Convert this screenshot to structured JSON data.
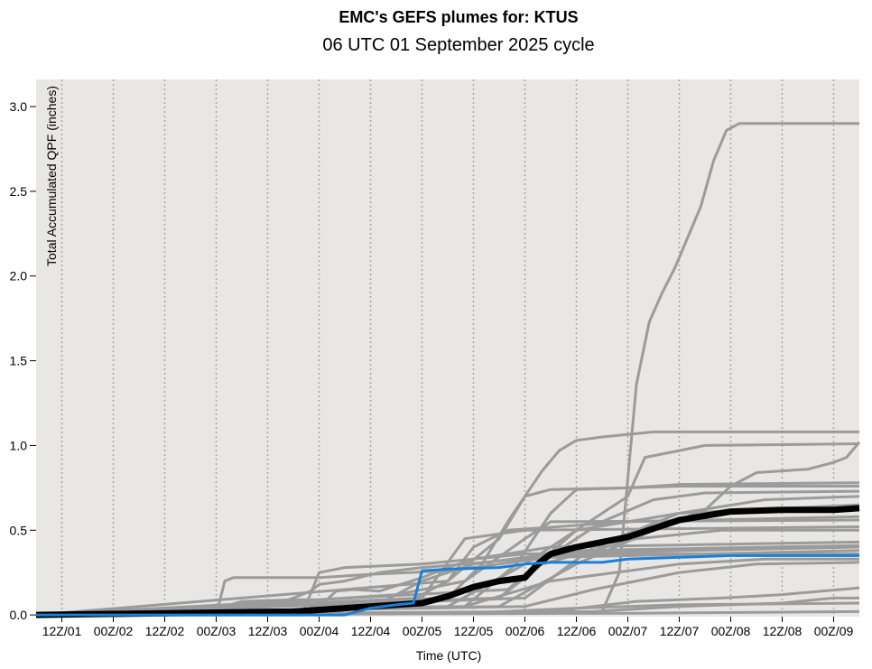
{
  "chart_data": {
    "type": "line",
    "title": "EMC's GEFS plumes for: KTUS",
    "subtitle": "06 UTC 01 September 2025 cycle",
    "xlabel": "Time (UTC)",
    "ylabel": "Total Accumulated QPF (inches)",
    "x_unit": "forecast hours since 06Z/01",
    "xlim": [
      0,
      192
    ],
    "ylim": [
      -0.01,
      3.16
    ],
    "grid": "vertical dotted at x ticks",
    "x_ticks": [
      {
        "hour": 6,
        "label": "12Z/01"
      },
      {
        "hour": 18,
        "label": "00Z/02"
      },
      {
        "hour": 30,
        "label": "12Z/02"
      },
      {
        "hour": 42,
        "label": "00Z/03"
      },
      {
        "hour": 54,
        "label": "12Z/03"
      },
      {
        "hour": 66,
        "label": "00Z/04"
      },
      {
        "hour": 78,
        "label": "12Z/04"
      },
      {
        "hour": 90,
        "label": "00Z/05"
      },
      {
        "hour": 102,
        "label": "12Z/05"
      },
      {
        "hour": 114,
        "label": "00Z/06"
      },
      {
        "hour": 126,
        "label": "12Z/06"
      },
      {
        "hour": 138,
        "label": "00Z/07"
      },
      {
        "hour": 150,
        "label": "12Z/07"
      },
      {
        "hour": 162,
        "label": "00Z/08"
      },
      {
        "hour": 174,
        "label": "12Z/08"
      },
      {
        "hour": 186,
        "label": "00Z/09"
      }
    ],
    "y_ticks": [
      {
        "value": 0.0,
        "label": "0.0"
      },
      {
        "value": 0.5,
        "label": "0.5"
      },
      {
        "value": 1.0,
        "label": "1.0"
      },
      {
        "value": 1.5,
        "label": "1.5"
      },
      {
        "value": 2.0,
        "label": "2.0"
      },
      {
        "value": 2.5,
        "label": "2.5"
      },
      {
        "value": 3.0,
        "label": "3.0"
      }
    ],
    "colors": {
      "background": "#e8e7e6",
      "member": "#9b9b9b",
      "mean": "#000000",
      "control": "#1a7fd6"
    },
    "members": [
      [
        [
          0,
          0
        ],
        [
          132,
          0.02
        ],
        [
          136,
          0.25
        ],
        [
          140,
          1.36
        ],
        [
          143,
          1.73
        ],
        [
          146,
          1.9
        ],
        [
          149,
          2.05
        ],
        [
          155,
          2.41
        ],
        [
          158,
          2.68
        ],
        [
          161,
          2.86
        ],
        [
          164,
          2.9
        ],
        [
          192,
          2.9
        ]
      ],
      [
        [
          0,
          0
        ],
        [
          84,
          0.04
        ],
        [
          96,
          0.2
        ],
        [
          108,
          0.45
        ],
        [
          114,
          0.7
        ],
        [
          118,
          0.85
        ],
        [
          122,
          0.97
        ],
        [
          126,
          1.03
        ],
        [
          132,
          1.05
        ],
        [
          144,
          1.08
        ],
        [
          192,
          1.08
        ]
      ],
      [
        [
          0,
          0
        ],
        [
          96,
          0.05
        ],
        [
          114,
          0.3
        ],
        [
          126,
          0.5
        ],
        [
          132,
          0.6
        ],
        [
          138,
          0.7
        ],
        [
          142,
          0.93
        ],
        [
          150,
          0.97
        ],
        [
          156,
          1.0
        ],
        [
          192,
          1.01
        ]
      ],
      [
        [
          0,
          0
        ],
        [
          108,
          0.05
        ],
        [
          126,
          0.3
        ],
        [
          144,
          0.5
        ],
        [
          156,
          0.62
        ],
        [
          162,
          0.76
        ],
        [
          168,
          0.84
        ],
        [
          180,
          0.86
        ],
        [
          186,
          0.9
        ],
        [
          189,
          0.93
        ],
        [
          192,
          1.02
        ]
      ],
      [
        [
          0,
          0
        ],
        [
          96,
          0.1
        ],
        [
          104,
          0.3
        ],
        [
          110,
          0.55
        ],
        [
          114,
          0.7
        ],
        [
          120,
          0.74
        ],
        [
          138,
          0.75
        ],
        [
          150,
          0.77
        ],
        [
          192,
          0.78
        ]
      ],
      [
        [
          0,
          0
        ],
        [
          100,
          0.05
        ],
        [
          112,
          0.3
        ],
        [
          120,
          0.6
        ],
        [
          126,
          0.74
        ],
        [
          150,
          0.76
        ],
        [
          192,
          0.76
        ]
      ],
      [
        [
          0,
          0
        ],
        [
          108,
          0.1
        ],
        [
          120,
          0.35
        ],
        [
          132,
          0.55
        ],
        [
          144,
          0.68
        ],
        [
          156,
          0.72
        ],
        [
          192,
          0.73
        ]
      ],
      [
        [
          0,
          0
        ],
        [
          114,
          0.1
        ],
        [
          130,
          0.4
        ],
        [
          150,
          0.6
        ],
        [
          170,
          0.68
        ],
        [
          192,
          0.7
        ]
      ],
      [
        [
          0,
          0
        ],
        [
          110,
          0.15
        ],
        [
          126,
          0.5
        ],
        [
          150,
          0.6
        ],
        [
          192,
          0.65
        ]
      ],
      [
        [
          0,
          0
        ],
        [
          96,
          0.2
        ],
        [
          102,
          0.4
        ],
        [
          110,
          0.5
        ],
        [
          138,
          0.55
        ],
        [
          192,
          0.58
        ]
      ],
      [
        [
          0,
          0
        ],
        [
          90,
          0.1
        ],
        [
          100,
          0.45
        ],
        [
          114,
          0.5
        ],
        [
          192,
          0.52
        ]
      ],
      [
        [
          0,
          0
        ],
        [
          108,
          0.1
        ],
        [
          118,
          0.3
        ],
        [
          140,
          0.45
        ],
        [
          160,
          0.5
        ],
        [
          192,
          0.5
        ]
      ],
      [
        [
          0,
          0
        ],
        [
          62,
          0
        ],
        [
          66,
          0.25
        ],
        [
          72,
          0.28
        ],
        [
          90,
          0.3
        ],
        [
          102,
          0.33
        ],
        [
          120,
          0.4
        ],
        [
          192,
          0.43
        ]
      ],
      [
        [
          0,
          0
        ],
        [
          78,
          0.04
        ],
        [
          90,
          0.2
        ],
        [
          102,
          0.3
        ],
        [
          126,
          0.38
        ],
        [
          192,
          0.41
        ]
      ],
      [
        [
          0,
          0
        ],
        [
          42,
          0
        ],
        [
          44,
          0.2
        ],
        [
          46,
          0.22
        ],
        [
          66,
          0.22
        ],
        [
          78,
          0.24
        ],
        [
          96,
          0.26
        ],
        [
          120,
          0.34
        ],
        [
          192,
          0.38
        ]
      ],
      [
        [
          0,
          0
        ],
        [
          100,
          0.05
        ],
        [
          120,
          0.2
        ],
        [
          150,
          0.3
        ],
        [
          170,
          0.33
        ],
        [
          192,
          0.33
        ]
      ],
      [
        [
          0,
          0
        ],
        [
          114,
          0.05
        ],
        [
          130,
          0.15
        ],
        [
          150,
          0.25
        ],
        [
          168,
          0.3
        ],
        [
          192,
          0.31
        ]
      ],
      [
        [
          0,
          0
        ],
        [
          120,
          0.02
        ],
        [
          140,
          0.08
        ],
        [
          160,
          0.1
        ],
        [
          174,
          0.12
        ],
        [
          192,
          0.16
        ]
      ],
      [
        [
          0,
          0
        ],
        [
          130,
          0.02
        ],
        [
          150,
          0.05
        ],
        [
          174,
          0.07
        ],
        [
          186,
          0.1
        ],
        [
          192,
          0.1
        ]
      ],
      [
        [
          0,
          0
        ],
        [
          100,
          0.01
        ],
        [
          126,
          0.04
        ],
        [
          150,
          0.06
        ],
        [
          192,
          0.07
        ]
      ],
      [
        [
          0,
          0
        ],
        [
          140,
          0.01
        ],
        [
          192,
          0.02
        ]
      ],
      [
        [
          0,
          0
        ],
        [
          40,
          0
        ],
        [
          44,
          0.05
        ],
        [
          48,
          0.08
        ],
        [
          60,
          0.09
        ],
        [
          66,
          0.09
        ],
        [
          72,
          0.1
        ],
        [
          84,
          0.12
        ],
        [
          100,
          0.2
        ],
        [
          114,
          0.45
        ],
        [
          120,
          0.55
        ],
        [
          192,
          0.56
        ]
      ],
      [
        [
          0,
          0
        ],
        [
          22,
          0
        ],
        [
          26,
          0.02
        ],
        [
          60,
          0.02
        ],
        [
          66,
          0.05
        ],
        [
          70,
          0.14
        ],
        [
          74,
          0.15
        ],
        [
          80,
          0.14
        ],
        [
          90,
          0.22
        ],
        [
          96,
          0.28
        ],
        [
          102,
          0.33
        ],
        [
          114,
          0.36
        ],
        [
          192,
          0.4
        ]
      ],
      [
        [
          0,
          0
        ],
        [
          44,
          0
        ],
        [
          54,
          0.05
        ],
        [
          60,
          0.1
        ],
        [
          64,
          0.14
        ],
        [
          66,
          0.18
        ],
        [
          72,
          0.2
        ],
        [
          80,
          0.25
        ],
        [
          90,
          0.28
        ],
        [
          100,
          0.3
        ],
        [
          126,
          0.36
        ],
        [
          192,
          0.36
        ]
      ]
    ],
    "mean": [
      [
        0,
        0
      ],
      [
        30,
        0.01
      ],
      [
        60,
        0.02
      ],
      [
        66,
        0.03
      ],
      [
        78,
        0.05
      ],
      [
        90,
        0.07
      ],
      [
        96,
        0.11
      ],
      [
        102,
        0.165
      ],
      [
        108,
        0.2
      ],
      [
        114,
        0.22
      ],
      [
        117,
        0.3
      ],
      [
        120,
        0.36
      ],
      [
        126,
        0.4
      ],
      [
        138,
        0.46
      ],
      [
        150,
        0.56
      ],
      [
        162,
        0.61
      ],
      [
        174,
        0.62
      ],
      [
        186,
        0.62
      ],
      [
        192,
        0.63
      ]
    ],
    "control": [
      [
        0,
        0
      ],
      [
        72,
        0
      ],
      [
        78,
        0.04
      ],
      [
        84,
        0.06
      ],
      [
        88,
        0.07
      ],
      [
        90,
        0.26
      ],
      [
        96,
        0.27
      ],
      [
        108,
        0.28
      ],
      [
        114,
        0.3
      ],
      [
        120,
        0.31
      ],
      [
        132,
        0.31
      ],
      [
        138,
        0.33
      ],
      [
        150,
        0.34
      ],
      [
        162,
        0.35
      ],
      [
        192,
        0.35
      ]
    ]
  }
}
